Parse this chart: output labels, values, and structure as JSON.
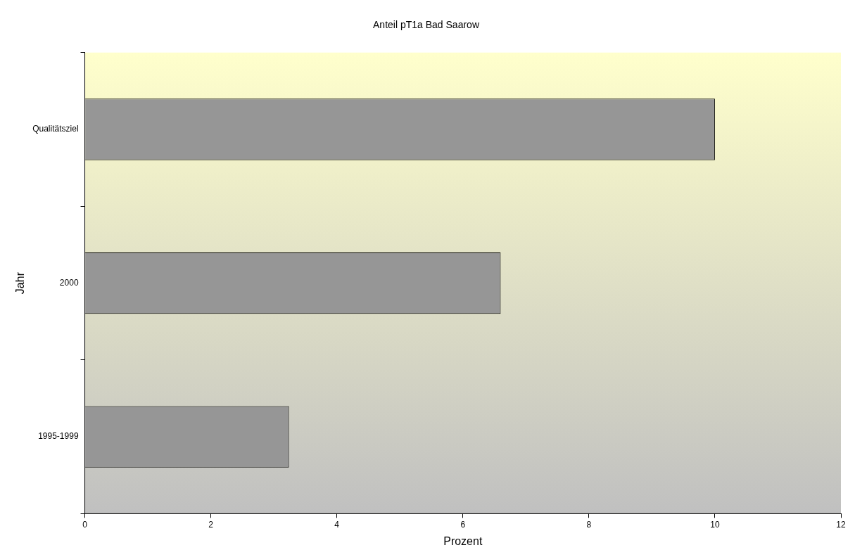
{
  "chart_data": {
    "type": "bar",
    "orientation": "horizontal",
    "title": "Anteil pT1a Bad Saarow",
    "xlabel": "Prozent",
    "ylabel": "Jahr",
    "categories": [
      "Qualitätsziel",
      "2000",
      "1995-1999"
    ],
    "values": [
      10,
      6.6,
      3.24
    ],
    "color": "#969696",
    "xlim": [
      0,
      12
    ],
    "xticks": [
      0,
      2,
      4,
      6,
      8,
      10,
      12
    ],
    "grid": false,
    "legend": false
  }
}
